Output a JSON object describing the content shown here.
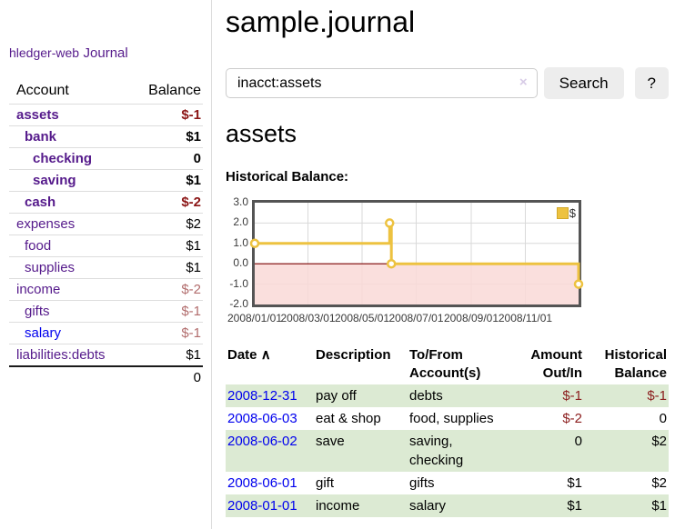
{
  "colors": {
    "purple_link": "#551a8b",
    "blue_link": "#0000ee",
    "negative_strong": "#8b1515",
    "negative_soft": "#b26d6d",
    "series_gold": "#edc240",
    "row_highlight_green": "#dcead3",
    "negative_region_pink": "#f9d9d7",
    "zero_line_red": "#7a0000",
    "grid_line": "#d9d9d9",
    "plot_border": "#545454"
  },
  "sidebar": {
    "brand": "hledger-web",
    "journal_link": "Journal",
    "accounts_table": {
      "headers": {
        "account": "Account",
        "balance": "Balance"
      },
      "rows": [
        {
          "name": "assets",
          "balance": "$-1",
          "depth": 0,
          "bold": true,
          "tone": "neg-strong",
          "link": "purple"
        },
        {
          "name": "bank",
          "balance": "$1",
          "depth": 1,
          "bold": true,
          "tone": "plain",
          "link": "purple"
        },
        {
          "name": "checking",
          "balance": "0",
          "depth": 2,
          "bold": true,
          "tone": "plain",
          "link": "purple"
        },
        {
          "name": "saving",
          "balance": "$1",
          "depth": 2,
          "bold": true,
          "tone": "plain",
          "link": "purple"
        },
        {
          "name": "cash",
          "balance": "$-2",
          "depth": 1,
          "bold": true,
          "tone": "neg-strong",
          "link": "purple"
        },
        {
          "name": "expenses",
          "balance": "$2",
          "depth": 0,
          "bold": false,
          "tone": "plain",
          "link": "purple"
        },
        {
          "name": "food",
          "balance": "$1",
          "depth": 1,
          "bold": false,
          "tone": "plain",
          "link": "purple"
        },
        {
          "name": "supplies",
          "balance": "$1",
          "depth": 1,
          "bold": false,
          "tone": "plain",
          "link": "purple"
        },
        {
          "name": "income",
          "balance": "$-2",
          "depth": 0,
          "bold": false,
          "tone": "neg-soft",
          "link": "purple"
        },
        {
          "name": "gifts",
          "balance": "$-1",
          "depth": 1,
          "bold": false,
          "tone": "neg-soft",
          "link": "purple"
        },
        {
          "name": "salary",
          "balance": "$-1",
          "depth": 1,
          "bold": false,
          "tone": "neg-soft",
          "link": "blue"
        },
        {
          "name": "liabilities:debts",
          "balance": "$1",
          "depth": 0,
          "bold": false,
          "tone": "plain",
          "link": "purple"
        }
      ],
      "total": "0"
    }
  },
  "main": {
    "title": "sample.journal",
    "search": {
      "value": "inacct:assets",
      "clear_icon": "×",
      "button_label": "Search",
      "help_label": "?"
    },
    "account_heading": "assets",
    "chart_title": "Historical Balance:"
  },
  "chart_data": {
    "type": "line",
    "steps": true,
    "title": "Historical Balance:",
    "legend": [
      {
        "label": "$",
        "color": "#edc240"
      }
    ],
    "legend_position": "top-right",
    "grid": true,
    "negative_region_shaded": true,
    "xlim_days": [
      0,
      365
    ],
    "ylim": [
      -2,
      3
    ],
    "series": [
      {
        "name": "$",
        "points": [
          {
            "date": "2008-01-01",
            "day": 0,
            "value": 1
          },
          {
            "date": "2008-06-01",
            "day": 152,
            "value": 2
          },
          {
            "date": "2008-06-02",
            "day": 153,
            "value": 2
          },
          {
            "date": "2008-06-03",
            "day": 154,
            "value": 0
          },
          {
            "date": "2008-12-31",
            "day": 365,
            "value": -1
          }
        ]
      }
    ],
    "y_ticks": [
      {
        "value": 3,
        "label": "3.0"
      },
      {
        "value": 2,
        "label": "2.0"
      },
      {
        "value": 1,
        "label": "1.0"
      },
      {
        "value": 0,
        "label": "0.0"
      },
      {
        "value": -1,
        "label": "-1.0"
      },
      {
        "value": -2,
        "label": "-2.0"
      }
    ],
    "x_ticks": [
      {
        "day": 0,
        "label": "2008/01/01"
      },
      {
        "day": 60,
        "label": "2008/03/01"
      },
      {
        "day": 121,
        "label": "2008/05/01"
      },
      {
        "day": 182,
        "label": "2008/07/01"
      },
      {
        "day": 244,
        "label": "2008/09/01"
      },
      {
        "day": 305,
        "label": "2008/11/01"
      }
    ]
  },
  "register_table": {
    "sort_indicator": "∧",
    "columns": [
      {
        "lines": [
          "Date"
        ],
        "align": "left",
        "sorted": true
      },
      {
        "lines": [
          "Description"
        ],
        "align": "left"
      },
      {
        "lines": [
          "To/From",
          "Account(s)"
        ],
        "align": "left"
      },
      {
        "lines": [
          "Amount",
          "Out/In"
        ],
        "align": "right"
      },
      {
        "lines": [
          "Historical",
          "Balance"
        ],
        "align": "right"
      }
    ],
    "rows": [
      {
        "date": "2008-12-31",
        "description": "pay off",
        "accounts": "debts",
        "amount": "$-1",
        "amount_neg": true,
        "balance": "$-1",
        "balance_neg": true,
        "highlight": true
      },
      {
        "date": "2008-06-03",
        "description": "eat & shop",
        "accounts": "food, supplies",
        "amount": "$-2",
        "amount_neg": true,
        "balance": "0",
        "balance_neg": false,
        "highlight": false
      },
      {
        "date": "2008-06-02",
        "description": "save",
        "accounts": "saving, checking",
        "amount": "0",
        "amount_neg": false,
        "balance": "$2",
        "balance_neg": false,
        "highlight": true
      },
      {
        "date": "2008-06-01",
        "description": "gift",
        "accounts": "gifts",
        "amount": "$1",
        "amount_neg": false,
        "balance": "$2",
        "balance_neg": false,
        "highlight": false
      },
      {
        "date": "2008-01-01",
        "description": "income",
        "accounts": "salary",
        "amount": "$1",
        "amount_neg": false,
        "balance": "$1",
        "balance_neg": false,
        "highlight": true
      }
    ]
  }
}
